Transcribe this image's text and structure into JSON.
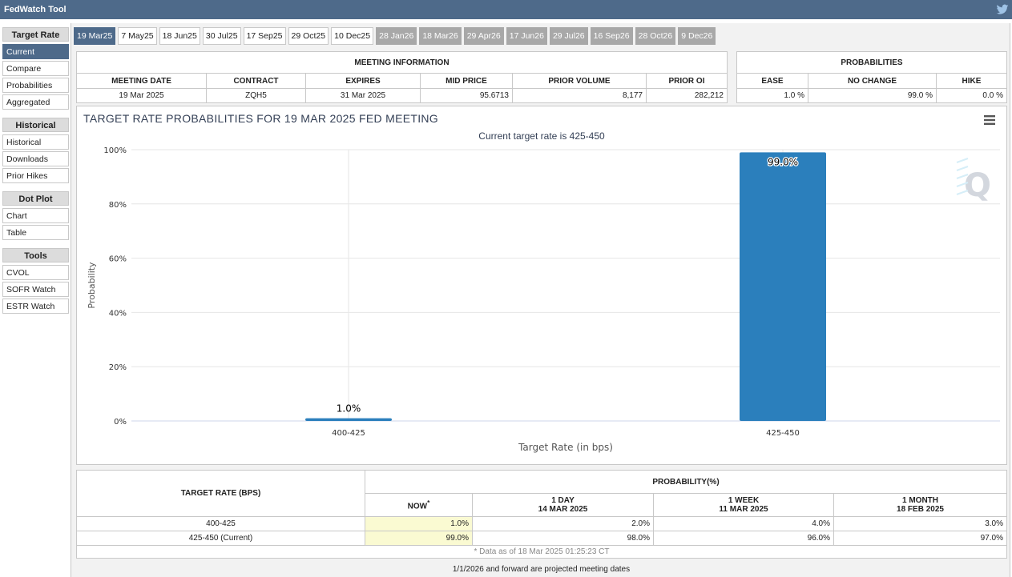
{
  "app": {
    "title": "FedWatch Tool"
  },
  "sidebar": {
    "sections": [
      {
        "header": "Target Rate",
        "items": [
          "Current",
          "Compare",
          "Probabilities",
          "Aggregated"
        ]
      },
      {
        "header": "Historical",
        "items": [
          "Historical",
          "Downloads",
          "Prior Hikes"
        ]
      },
      {
        "header": "Dot Plot",
        "items": [
          "Chart",
          "Table"
        ]
      },
      {
        "header": "Tools",
        "items": [
          "CVOL",
          "SOFR Watch",
          "ESTR Watch"
        ]
      }
    ]
  },
  "tabs": [
    "19 Mar25",
    "7 May25",
    "18 Jun25",
    "30 Jul25",
    "17 Sep25",
    "29 Oct25",
    "10 Dec25",
    "28 Jan26",
    "18 Mar26",
    "29 Apr26",
    "17 Jun26",
    "29 Jul26",
    "16 Sep26",
    "28 Oct26",
    "9 Dec26"
  ],
  "meeting_info": {
    "title": "MEETING INFORMATION",
    "columns": [
      "MEETING DATE",
      "CONTRACT",
      "EXPIRES",
      "MID PRICE",
      "PRIOR VOLUME",
      "PRIOR OI"
    ],
    "values": [
      "19 Mar 2025",
      "ZQH5",
      "31 Mar 2025",
      "95.6713",
      "8,177",
      "282,212"
    ]
  },
  "probabilities": {
    "title": "PROBABILITIES",
    "columns": [
      "EASE",
      "NO CHANGE",
      "HIKE"
    ],
    "values": [
      "1.0 %",
      "99.0 %",
      "0.0 %"
    ]
  },
  "chart_data": {
    "type": "bar",
    "title": "TARGET RATE PROBABILITIES FOR 19 MAR 2025 FED MEETING",
    "subtitle": "Current target rate is 425-450",
    "xlabel": "Target Rate (in bps)",
    "ylabel": "Probability",
    "categories": [
      "400-425",
      "425-450"
    ],
    "values": [
      1.0,
      99.0
    ],
    "data_labels": [
      "1.0%",
      "99.0%"
    ],
    "ylim": [
      0,
      100
    ],
    "yticks": [
      "0%",
      "20%",
      "40%",
      "60%",
      "80%",
      "100%"
    ],
    "color": "#2b7fbc",
    "grid": true,
    "watermark": "Q"
  },
  "prob_table": {
    "target_header": "TARGET RATE (BPS)",
    "prob_header": "PROBABILITY(%)",
    "columns": [
      {
        "label": "NOW",
        "sub": ""
      },
      {
        "label": "1 DAY",
        "sub": "14 MAR 2025"
      },
      {
        "label": "1 WEEK",
        "sub": "11 MAR 2025"
      },
      {
        "label": "1 MONTH",
        "sub": "18 FEB 2025"
      }
    ],
    "now_mark": "*",
    "rows": [
      {
        "rate": "400-425",
        "values": [
          "1.0%",
          "2.0%",
          "4.0%",
          "3.0%"
        ]
      },
      {
        "rate": "425-450 (Current)",
        "values": [
          "99.0%",
          "98.0%",
          "96.0%",
          "97.0%"
        ]
      }
    ],
    "footnote": "* Data as of 18 Mar 2025 01:25:23 CT"
  },
  "projected_note": "1/1/2026 and forward are projected meeting dates"
}
